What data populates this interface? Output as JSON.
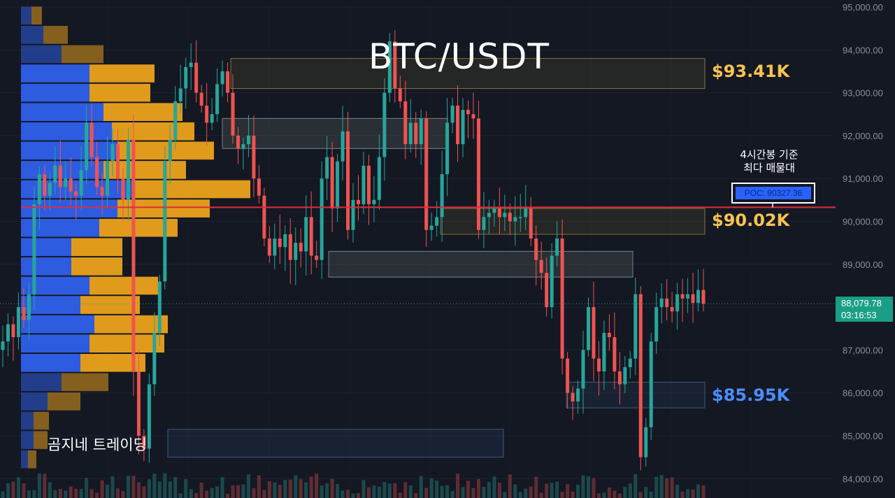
{
  "title": "BTC/USDT",
  "brand": "곰지네 트레이딩",
  "poc": {
    "note_line1": "4시간봉 기준",
    "note_line2": "최다 매물대",
    "label": "POC: 90327.36",
    "value": 90327.36,
    "line_color": "#e02d3c"
  },
  "levels": [
    {
      "label": "$93.41K",
      "value": 93410,
      "color": "#f5c451"
    },
    {
      "label": "$90.02K",
      "value": 90020,
      "color": "#f5c451"
    },
    {
      "label": "$85.95K",
      "value": 85950,
      "color": "#4c8dff"
    }
  ],
  "current_price": {
    "price": "88,079.78",
    "countdown": "03:16:53",
    "value": 88079.78,
    "color": "#1a9f86"
  },
  "chart_data": {
    "type": "candlestick",
    "timeframe": "4h",
    "y_axis": {
      "ticks": [
        "95,000.00",
        "94,000.00",
        "93,000.00",
        "92,000.00",
        "91,000.00",
        "90,000.00",
        "89,000.00",
        "88,000.00",
        "87,000.00",
        "86,000.00",
        "85,000.00",
        "84,000.00"
      ],
      "tick_values": [
        95000,
        94000,
        93000,
        92000,
        91000,
        90000,
        89000,
        88000,
        87000,
        86000,
        85000,
        84000
      ],
      "range": [
        83900,
        95100
      ]
    },
    "candles_close_approx": [
      87200,
      87600,
      87300,
      88000,
      87700,
      88300,
      90400,
      91100,
      90600,
      90900,
      91300,
      90800,
      91000,
      90700,
      90600,
      91200,
      92300,
      91500,
      90800,
      90600,
      91400,
      91800,
      91000,
      90500,
      91900,
      86500,
      85000,
      84700,
      86200,
      87400,
      88600,
      91400,
      91900,
      92800,
      93100,
      93600,
      93700,
      93000,
      92700,
      92300,
      92500,
      93200,
      93500,
      93000,
      92000,
      91700,
      91800,
      92000,
      91000,
      90600,
      89600,
      89200,
      89600,
      89400,
      89700,
      89100,
      89500,
      89300,
      90100,
      89200,
      89100,
      91000,
      91500,
      90300,
      91400,
      92100,
      89800,
      90500,
      90400,
      91300,
      90400,
      90500,
      91500,
      93000,
      94200,
      93100,
      92800,
      91800,
      92300,
      91800,
      92400,
      89800,
      89900,
      90100,
      91100,
      92300,
      92700,
      91800,
      92600,
      92500,
      92400,
      89800,
      90100,
      90200,
      90300,
      90100,
      90200,
      90000,
      90100,
      90100,
      90300,
      89600,
      89100,
      88800,
      88000,
      89200,
      89600,
      86800,
      86000,
      85800,
      86100,
      87000,
      88000,
      86800,
      86500,
      87400,
      87300,
      86500,
      86200,
      86600,
      86800,
      88300,
      84500,
      85200,
      87200,
      88000,
      88200,
      88000,
      87900,
      88300,
      88200,
      88300,
      88100,
      88400,
      88079
    ],
    "volume_profile": [
      {
        "price": 94800,
        "buy": 15,
        "sell": 15
      },
      {
        "price": 94350,
        "buy": 32,
        "sell": 35
      },
      {
        "price": 93900,
        "buy": 58,
        "sell": 60
      },
      {
        "price": 93450,
        "buy": 98,
        "sell": 93
      },
      {
        "price": 93000,
        "buy": 98,
        "sell": 87
      },
      {
        "price": 92550,
        "buy": 118,
        "sell": 113
      },
      {
        "price": 92100,
        "buy": 130,
        "sell": 118
      },
      {
        "price": 91650,
        "buy": 138,
        "sell": 138
      },
      {
        "price": 91200,
        "buy": 118,
        "sell": 118
      },
      {
        "price": 90750,
        "buy": 163,
        "sell": 165
      },
      {
        "price": 90300,
        "buy": 138,
        "sell": 132
      },
      {
        "price": 89850,
        "buy": 112,
        "sell": 112
      },
      {
        "price": 89400,
        "buy": 72,
        "sell": 73
      },
      {
        "price": 88950,
        "buy": 72,
        "sell": 73
      },
      {
        "price": 88500,
        "buy": 98,
        "sell": 98
      },
      {
        "price": 88050,
        "buy": 85,
        "sell": 85
      },
      {
        "price": 87600,
        "buy": 105,
        "sell": 105
      },
      {
        "price": 87150,
        "buy": 98,
        "sell": 107
      },
      {
        "price": 86700,
        "buy": 85,
        "sell": 93
      },
      {
        "price": 86250,
        "buy": 58,
        "sell": 67
      },
      {
        "price": 85800,
        "buy": 38,
        "sell": 47
      },
      {
        "price": 85350,
        "buy": 18,
        "sell": 22
      },
      {
        "price": 84900,
        "buy": 18,
        "sell": 20
      },
      {
        "price": 84450,
        "buy": 10,
        "sell": 12
      }
    ],
    "zones": [
      {
        "kind": "supply",
        "price_top": 93800,
        "price_bottom": 93100
      },
      {
        "kind": "supply",
        "price_top": 92400,
        "price_bottom": 91700
      },
      {
        "kind": "supply",
        "price_top": 90300,
        "price_bottom": 89700
      },
      {
        "kind": "supply",
        "price_top": 89300,
        "price_bottom": 88700
      },
      {
        "kind": "demand",
        "price_top": 92400,
        "price_bottom": 91700
      },
      {
        "kind": "demand",
        "price_top": 89300,
        "price_bottom": 88700
      },
      {
        "kind": "demand",
        "price_top": 86250,
        "price_bottom": 85650
      },
      {
        "kind": "demand",
        "price_top": 85150,
        "price_bottom": 84500
      }
    ]
  }
}
